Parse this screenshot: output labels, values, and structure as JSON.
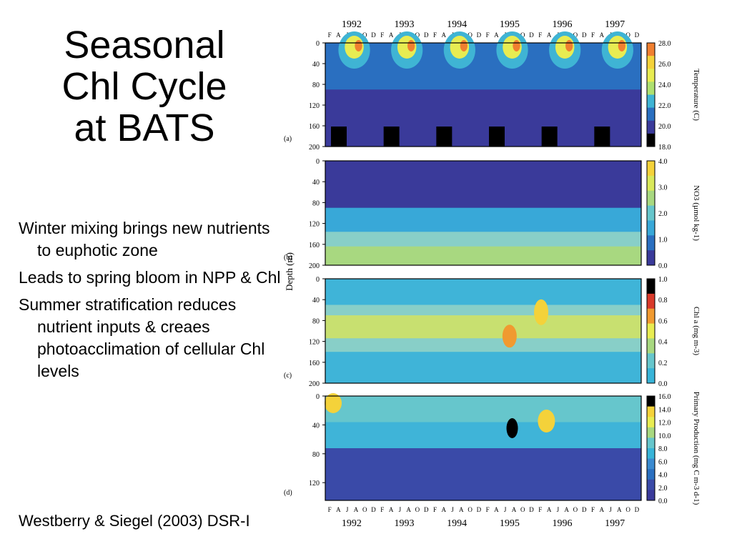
{
  "slide": {
    "title_lines": [
      "Seasonal",
      "Chl Cycle",
      "at BATS"
    ],
    "bullets": [
      "Winter mixing brings new nutrients to euphotic zone",
      "Leads to spring bloom in NPP & Chl",
      "Summer stratification reduces nutrient inputs & creaes photoacclimation of cellular Chl levels"
    ],
    "citation": "Westberry & Siegel (2003) DSR-I"
  },
  "figure": {
    "years": [
      "1992",
      "1993",
      "1994",
      "1995",
      "1996",
      "1997"
    ],
    "month_initials": [
      "F",
      "A",
      "J",
      "A",
      "O",
      "D"
    ],
    "y_axis_label": "Depth (m)",
    "panels": [
      {
        "letter": "(a)",
        "depth_ticks": [
          "0",
          "40",
          "80",
          "120",
          "160",
          "200"
        ],
        "colorbar_label": "Temperature (C)",
        "colorbar_ticks": [
          "28.0",
          "26.0",
          "24.0",
          "22.0",
          "20.0",
          "18.0"
        ],
        "colorbar_colors": [
          "#f07f30",
          "#f4d23a",
          "#e8ec52",
          "#aee070",
          "#3fb4d4",
          "#2a6fc0",
          "#3a3a9a",
          "#000000"
        ]
      },
      {
        "letter": "(b)",
        "depth_ticks": [
          "0",
          "40",
          "80",
          "120",
          "160",
          "200"
        ],
        "colorbar_label": "NO3 (µmol kg-1)",
        "colorbar_ticks": [
          "4.0",
          "3.0",
          "2.0",
          "1.0",
          "0.0"
        ],
        "colorbar_colors": [
          "#f4d23a",
          "#d9e85a",
          "#a8d880",
          "#66c6cc",
          "#38a8d8",
          "#2a6fc0",
          "#3a3a9a"
        ]
      },
      {
        "letter": "(c)",
        "depth_ticks": [
          "0",
          "40",
          "80",
          "120",
          "160",
          "200"
        ],
        "colorbar_label": "Chl a (mg m-3)",
        "colorbar_ticks": [
          "1.0",
          "0.8",
          "0.6",
          "0.4",
          "0.2",
          "0.0"
        ],
        "colorbar_colors": [
          "#000000",
          "#d83a2a",
          "#f09a30",
          "#e8ec52",
          "#a8d880",
          "#66c6cc",
          "#38b4d8"
        ]
      },
      {
        "letter": "(d)",
        "depth_ticks": [
          "0",
          "40",
          "80",
          "120"
        ],
        "colorbar_label": "Primary Production (mg C m-3 d-1)",
        "colorbar_ticks": [
          "16.0",
          "14.0",
          "12.0",
          "10.0",
          "8.0",
          "6.0",
          "4.0",
          "2.0",
          "0.0"
        ],
        "colorbar_colors": [
          "#000000",
          "#f4d23a",
          "#e8ec52",
          "#a8d880",
          "#66c6cc",
          "#38b4d8",
          "#3a8ad0",
          "#2a6fc0",
          "#3a4aa8",
          "#3a3a9a"
        ]
      }
    ]
  }
}
